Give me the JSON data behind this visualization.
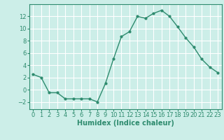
{
  "x": [
    0,
    1,
    2,
    3,
    4,
    5,
    6,
    7,
    8,
    9,
    10,
    11,
    12,
    13,
    14,
    15,
    16,
    17,
    18,
    19,
    20,
    21,
    22,
    23
  ],
  "y": [
    2.5,
    2.0,
    -0.5,
    -0.5,
    -1.5,
    -1.5,
    -1.5,
    -1.5,
    -2.0,
    1.0,
    5.0,
    8.7,
    9.5,
    12.0,
    11.7,
    12.5,
    13.0,
    12.0,
    10.3,
    8.5,
    7.0,
    5.0,
    3.7,
    2.8
  ],
  "line_color": "#2e8b6e",
  "marker": "o",
  "marker_size": 2,
  "bg_color": "#cceee8",
  "grid_color": "#ffffff",
  "xlabel": "Humidex (Indice chaleur)",
  "ylim": [
    -3.2,
    14.0
  ],
  "xlim": [
    -0.5,
    23.5
  ],
  "yticks": [
    -2,
    0,
    2,
    4,
    6,
    8,
    10,
    12
  ],
  "xticks": [
    0,
    1,
    2,
    3,
    4,
    5,
    6,
    7,
    8,
    9,
    10,
    11,
    12,
    13,
    14,
    15,
    16,
    17,
    18,
    19,
    20,
    21,
    22,
    23
  ],
  "xlabel_fontsize": 7,
  "tick_fontsize": 6,
  "line_width": 1.0
}
